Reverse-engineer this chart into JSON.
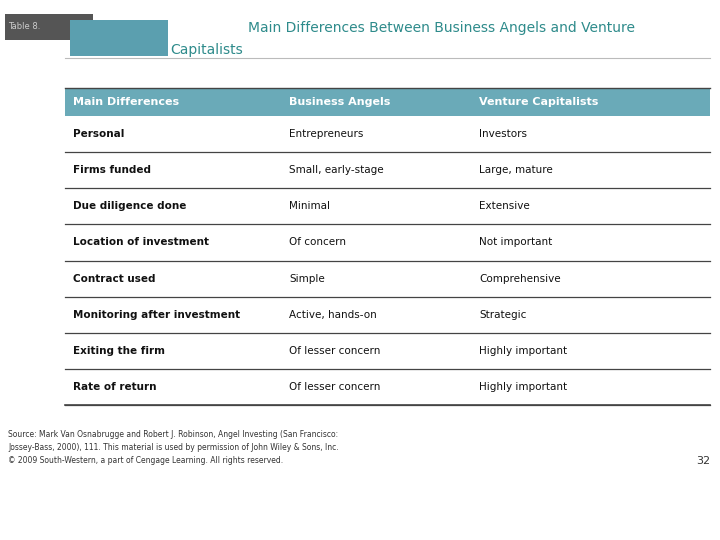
{
  "title_line1": "Main Differences Between Business Angels and Venture",
  "title_line2": "Capitalists",
  "title_color": "#2e8b8b",
  "header_bg_color": "#6aaab8",
  "header_text_color": "#ffffff",
  "header": [
    "Main Differences",
    "Business Angels",
    "Venture Capitalists"
  ],
  "rows": [
    [
      "Personal",
      "Entrepreneurs",
      "Investors"
    ],
    [
      "Firms funded",
      "Small, early-stage",
      "Large, mature"
    ],
    [
      "Due diligence done",
      "Minimal",
      "Extensive"
    ],
    [
      "Location of investment",
      "Of concern",
      "Not important"
    ],
    [
      "Contract used",
      "Simple",
      "Comprehensive"
    ],
    [
      "Monitoring after investment",
      "Active, hands-on",
      "Strategic"
    ],
    [
      "Exiting the firm",
      "Of lesser concern",
      "Highly important"
    ],
    [
      "Rate of return",
      "Of lesser concern",
      "Highly important"
    ]
  ],
  "source_line1": "Source: Mark Van Osnabrugge and Robert J. Robinson, Angel Investing (San Francisco:",
  "source_line2": "Jossey-Bass, 2000), 111. This material is used by permission of John Wiley & Sons, Inc.",
  "source_line3": "© 2009 South-Western, a part of Cengage Learning. All rights reserved.",
  "page_number": "32",
  "table_bg_color": "#ffffff",
  "row_line_color": "#444444",
  "slide_bg_color": "#ffffff",
  "dark_rect_color": "#555555",
  "teal_rect_color": "#5b9faf"
}
